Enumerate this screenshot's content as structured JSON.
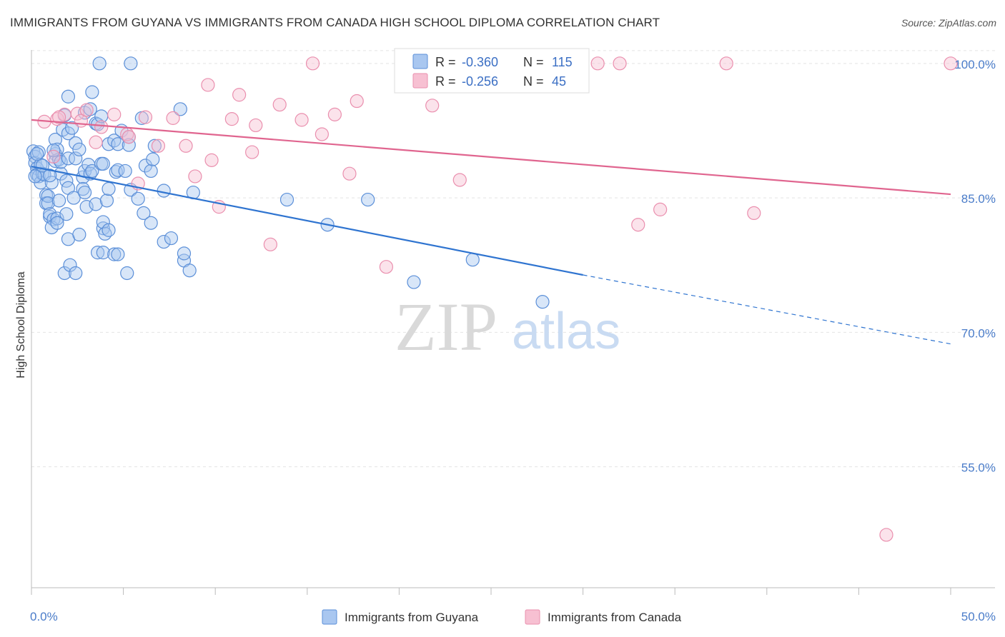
{
  "title": "IMMIGRANTS FROM GUYANA VS IMMIGRANTS FROM CANADA HIGH SCHOOL DIPLOMA CORRELATION CHART",
  "source": "Source: ZipAtlas.com",
  "watermark": {
    "zip": "ZIP",
    "atlas": "atlas"
  },
  "colors": {
    "guyana_fill": "#a9c7f0",
    "guyana_stroke": "#5b8fd8",
    "guyana_line": "#2f74d0",
    "canada_fill": "#f7c0d2",
    "canada_stroke": "#ea8fae",
    "canada_line": "#e0658f",
    "grid": "#e4e4e4",
    "tick_label": "#4a7cc9"
  },
  "stats": [
    {
      "r_label": "R =",
      "r_value": "-0.360",
      "n_label": "N =",
      "n_value": "115"
    },
    {
      "r_label": "R =",
      "r_value": "-0.256",
      "n_label": "N =",
      "n_value": "45"
    }
  ],
  "chart_data": {
    "type": "scatter",
    "title": "IMMIGRANTS FROM GUYANA VS IMMIGRANTS FROM CANADA HIGH SCHOOL DIPLOMA CORRELATION CHART",
    "xlabel": "",
    "ylabel": "High School Diploma",
    "xlim": [
      0,
      50
    ],
    "ylim": [
      41.5,
      101.5
    ],
    "x_tick_labels": [
      "0.0%",
      "50.0%"
    ],
    "y_ticks": [
      55.0,
      70.0,
      85.0,
      100.0
    ],
    "y_tick_labels": [
      "55.0%",
      "70.0%",
      "85.0%",
      "100.0%"
    ],
    "grid": "horizontal dashed",
    "legend_placement": "bottom-center",
    "series": [
      {
        "name": "Immigrants from Guyana",
        "trend": {
          "x0": 0,
          "y0": 88.5,
          "x1": 30,
          "y1": 76.4,
          "dashed_to_x": 50,
          "dashed_to_y": 68.7
        },
        "points": [
          [
            0.1,
            90.2
          ],
          [
            0.2,
            89.6
          ],
          [
            0.2,
            88.9
          ],
          [
            0.3,
            88.3
          ],
          [
            0.3,
            87.6
          ],
          [
            0.4,
            90.1
          ],
          [
            0.4,
            87.4
          ],
          [
            0.5,
            88.7
          ],
          [
            0.5,
            86.7
          ],
          [
            0.6,
            87.7
          ],
          [
            0.7,
            87.6
          ],
          [
            0.8,
            85.3
          ],
          [
            0.8,
            84.4
          ],
          [
            0.9,
            85.2
          ],
          [
            0.9,
            84.4
          ],
          [
            1.0,
            82.9
          ],
          [
            1.0,
            83.2
          ],
          [
            1.1,
            86.7
          ],
          [
            1.2,
            82.6
          ],
          [
            1.1,
            81.7
          ],
          [
            1.3,
            89.9
          ],
          [
            1.3,
            89.1
          ],
          [
            1.3,
            91.5
          ],
          [
            1.4,
            90.4
          ],
          [
            1.4,
            82.7
          ],
          [
            1.4,
            82.2
          ],
          [
            1.5,
            89.3
          ],
          [
            1.5,
            84.7
          ],
          [
            1.6,
            87.7
          ],
          [
            1.6,
            89.0
          ],
          [
            1.8,
            94.2
          ],
          [
            1.7,
            92.6
          ],
          [
            1.9,
            83.2
          ],
          [
            1.8,
            76.6
          ],
          [
            1.9,
            86.9
          ],
          [
            2.0,
            89.4
          ],
          [
            2.0,
            80.4
          ],
          [
            2.0,
            86.1
          ],
          [
            2.0,
            92.2
          ],
          [
            2.0,
            96.3
          ],
          [
            2.1,
            77.5
          ],
          [
            2.2,
            92.8
          ],
          [
            2.3,
            85.0
          ],
          [
            2.4,
            76.6
          ],
          [
            2.4,
            91.1
          ],
          [
            2.4,
            89.4
          ],
          [
            2.6,
            80.9
          ],
          [
            2.8,
            87.3
          ],
          [
            2.8,
            86.0
          ],
          [
            2.9,
            94.5
          ],
          [
            2.9,
            88.0
          ],
          [
            2.9,
            85.6
          ],
          [
            3.0,
            84.0
          ],
          [
            3.1,
            88.7
          ],
          [
            3.2,
            87.7
          ],
          [
            3.2,
            94.9
          ],
          [
            3.3,
            88.0
          ],
          [
            3.3,
            96.8
          ],
          [
            3.5,
            84.3
          ],
          [
            3.5,
            93.3
          ],
          [
            3.6,
            93.2
          ],
          [
            3.6,
            78.9
          ],
          [
            3.8,
            94.1
          ],
          [
            3.8,
            88.8
          ],
          [
            3.9,
            81.6
          ],
          [
            3.9,
            82.3
          ],
          [
            3.9,
            78.9
          ],
          [
            3.9,
            88.8
          ],
          [
            4.0,
            81.0
          ],
          [
            4.1,
            84.7
          ],
          [
            4.2,
            91.0
          ],
          [
            4.2,
            81.4
          ],
          [
            4.2,
            86.0
          ],
          [
            4.5,
            78.7
          ],
          [
            4.5,
            91.4
          ],
          [
            4.6,
            87.9
          ],
          [
            4.7,
            88.1
          ],
          [
            4.7,
            91.0
          ],
          [
            4.7,
            78.7
          ],
          [
            4.9,
            92.5
          ],
          [
            5.1,
            88.0
          ],
          [
            5.2,
            76.6
          ],
          [
            5.3,
            91.8
          ],
          [
            5.3,
            90.9
          ],
          [
            5.4,
            85.9
          ],
          [
            5.8,
            84.9
          ],
          [
            6.0,
            93.9
          ],
          [
            6.1,
            83.3
          ],
          [
            6.2,
            88.6
          ],
          [
            6.5,
            88.0
          ],
          [
            6.5,
            82.2
          ],
          [
            6.6,
            89.3
          ],
          [
            6.7,
            90.8
          ],
          [
            7.2,
            85.8
          ],
          [
            7.2,
            80.1
          ],
          [
            7.6,
            80.5
          ],
          [
            8.1,
            94.9
          ],
          [
            8.3,
            78.0
          ],
          [
            8.3,
            78.8
          ],
          [
            8.6,
            76.9
          ],
          [
            8.8,
            85.6
          ],
          [
            3.7,
            100.0
          ],
          [
            5.4,
            100.0
          ],
          [
            13.9,
            84.8
          ],
          [
            16.1,
            82.0
          ],
          [
            18.3,
            84.8
          ],
          [
            24.0,
            78.1
          ],
          [
            20.8,
            75.6
          ],
          [
            27.8,
            73.4
          ],
          [
            0.2,
            87.4
          ],
          [
            0.3,
            89.9
          ],
          [
            0.6,
            88.6
          ],
          [
            1.0,
            87.5
          ],
          [
            1.2,
            90.3
          ],
          [
            2.6,
            90.4
          ]
        ]
      },
      {
        "name": "Immigrants from Canada",
        "trend": {
          "x0": 0,
          "y0": 93.7,
          "x1": 50,
          "y1": 85.4
        },
        "points": [
          [
            0.7,
            93.5
          ],
          [
            1.2,
            89.6
          ],
          [
            1.4,
            93.8
          ],
          [
            1.8,
            94.3
          ],
          [
            2.5,
            94.4
          ],
          [
            2.7,
            93.6
          ],
          [
            3.0,
            94.8
          ],
          [
            3.5,
            91.2
          ],
          [
            3.8,
            92.9
          ],
          [
            4.5,
            94.3
          ],
          [
            5.2,
            92.1
          ],
          [
            5.3,
            91.8
          ],
          [
            5.8,
            86.6
          ],
          [
            6.2,
            94.0
          ],
          [
            6.9,
            90.8
          ],
          [
            7.7,
            93.9
          ],
          [
            8.4,
            90.8
          ],
          [
            8.9,
            87.4
          ],
          [
            9.6,
            97.6
          ],
          [
            9.8,
            89.2
          ],
          [
            10.2,
            84.0
          ],
          [
            10.9,
            93.8
          ],
          [
            11.3,
            96.5
          ],
          [
            12.0,
            90.1
          ],
          [
            12.2,
            93.1
          ],
          [
            13.0,
            79.8
          ],
          [
            13.5,
            95.4
          ],
          [
            14.7,
            93.7
          ],
          [
            15.3,
            100.0
          ],
          [
            15.8,
            92.1
          ],
          [
            16.5,
            94.3
          ],
          [
            17.3,
            87.7
          ],
          [
            17.7,
            95.8
          ],
          [
            19.3,
            77.3
          ],
          [
            21.8,
            95.3
          ],
          [
            23.3,
            87.0
          ],
          [
            30.8,
            100.0
          ],
          [
            32.0,
            100.0
          ],
          [
            33.0,
            82.0
          ],
          [
            34.2,
            83.7
          ],
          [
            37.8,
            100.0
          ],
          [
            39.3,
            83.3
          ],
          [
            50.0,
            100.0
          ],
          [
            46.5,
            47.4
          ],
          [
            1.5,
            94.0
          ]
        ]
      }
    ]
  }
}
